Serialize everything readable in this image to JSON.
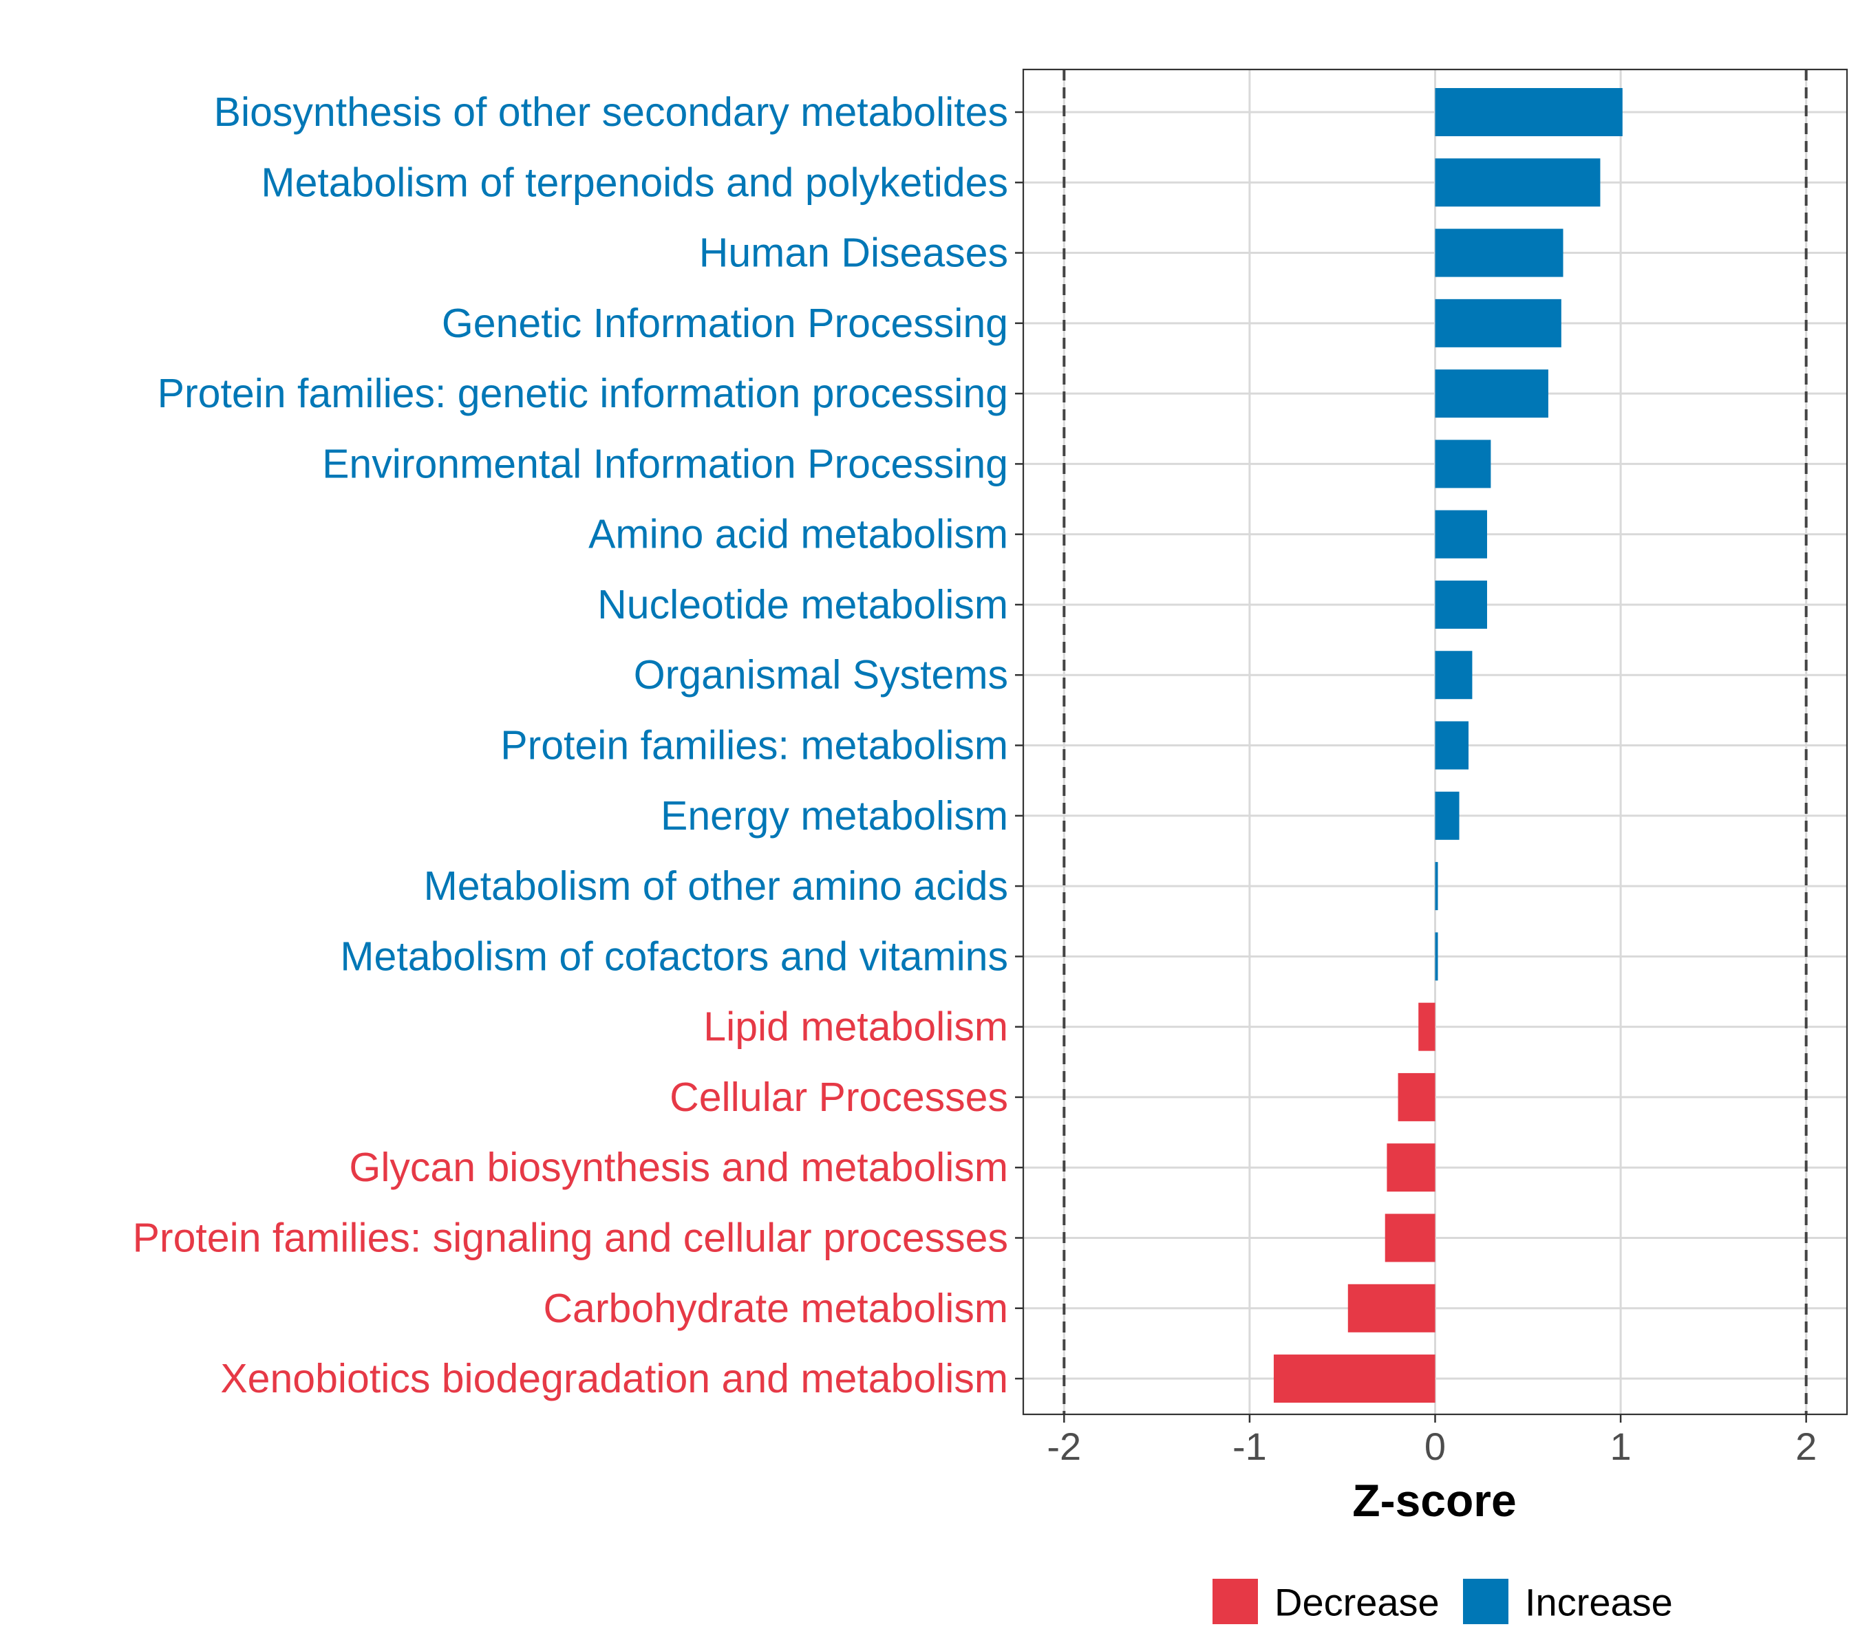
{
  "chart_data": {
    "type": "bar",
    "orientation": "horizontal",
    "title": "",
    "xlabel": "Z-score",
    "ylabel": "",
    "xlim": [
      -2.22,
      2.22
    ],
    "x_ticks": [
      -2,
      -1,
      0,
      1,
      2
    ],
    "x_tick_labels": [
      "-2",
      "-1",
      "0",
      "1",
      "2"
    ],
    "threshold_lines": [
      -2,
      2
    ],
    "grid": true,
    "legend_position": "bottom",
    "colors": {
      "Decrease": "#E63946",
      "Increase": "#0077B6"
    },
    "categories": [
      "Biosynthesis of other secondary metabolites",
      "Metabolism of terpenoids and polyketides",
      "Human Diseases",
      "Genetic Information Processing",
      "Protein families: genetic information processing",
      "Environmental Information Processing",
      "Amino acid metabolism",
      "Nucleotide metabolism",
      "Organismal Systems",
      "Protein families: metabolism",
      "Energy metabolism",
      "Metabolism of other amino acids",
      "Metabolism of cofactors and vitamins",
      "Lipid metabolism",
      "Cellular Processes",
      "Glycan biosynthesis and metabolism",
      "Protein families: signaling and cellular processes",
      "Carbohydrate metabolism",
      "Xenobiotics biodegradation and metabolism"
    ],
    "values": [
      1.01,
      0.89,
      0.69,
      0.68,
      0.61,
      0.3,
      0.28,
      0.28,
      0.2,
      0.18,
      0.13,
      0.01,
      0.01,
      -0.09,
      -0.2,
      -0.26,
      -0.27,
      -0.47,
      -0.87
    ],
    "groups": [
      "Increase",
      "Increase",
      "Increase",
      "Increase",
      "Increase",
      "Increase",
      "Increase",
      "Increase",
      "Increase",
      "Increase",
      "Increase",
      "Increase",
      "Increase",
      "Decrease",
      "Decrease",
      "Decrease",
      "Decrease",
      "Decrease",
      "Decrease"
    ],
    "legend": [
      {
        "label": "Decrease",
        "color": "#E63946"
      },
      {
        "label": "Increase",
        "color": "#0077B6"
      }
    ]
  }
}
